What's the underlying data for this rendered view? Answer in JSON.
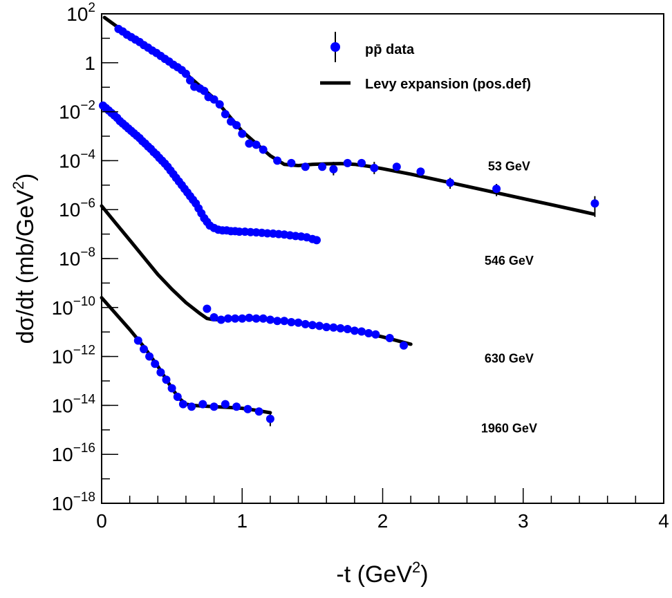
{
  "chart_data": {
    "type": "scatter",
    "xlabel": "-t (GeV",
    "xlabel_sup": "2",
    "xlabel_end": ")",
    "ylabel": "dσ/dt (mb/GeV",
    "ylabel_sup": "2",
    "ylabel_end": ")",
    "xlim": [
      0,
      4
    ],
    "ylim_log10": [
      -18,
      2
    ],
    "y_scale": "log",
    "grid": false,
    "legend_position": "top-right",
    "x_ticks": [
      {
        "value": 0,
        "label": "0"
      },
      {
        "value": 1,
        "label": "1"
      },
      {
        "value": 2,
        "label": "2"
      },
      {
        "value": 3,
        "label": "3"
      },
      {
        "value": 4,
        "label": "4"
      }
    ],
    "y_ticks": [
      {
        "exp": 2,
        "base": "10",
        "sup": "2"
      },
      {
        "exp": 0,
        "base": "1",
        "sup": ""
      },
      {
        "exp": -2,
        "base": "10",
        "sup": "−2"
      },
      {
        "exp": -4,
        "base": "10",
        "sup": "−4"
      },
      {
        "exp": -6,
        "base": "10",
        "sup": "−6"
      },
      {
        "exp": -8,
        "base": "10",
        "sup": "−8"
      },
      {
        "exp": -10,
        "base": "10",
        "sup": "−10"
      },
      {
        "exp": -12,
        "base": "10",
        "sup": "−12"
      },
      {
        "exp": -14,
        "base": "10",
        "sup": "−14"
      },
      {
        "exp": -16,
        "base": "10",
        "sup": "−16"
      },
      {
        "exp": -18,
        "base": "10",
        "sup": "−18"
      }
    ],
    "legend": {
      "data_label": "pp̄ data",
      "fit_label": "Levy expansion (pos.def)"
    },
    "annotations": [
      {
        "text": "53 GeV",
        "x": 2.9,
        "y_log10": -4.4
      },
      {
        "text": "546 GeV",
        "x": 2.9,
        "y_log10": -8.25
      },
      {
        "text": "630 GeV",
        "x": 2.9,
        "y_log10": -12.25
      },
      {
        "text": "1960 GeV",
        "x": 2.9,
        "y_log10": -15.1
      }
    ],
    "colors": {
      "data": "#0000ff",
      "fit": "#000000"
    },
    "series": [
      {
        "energy": "53 GeV",
        "data": [
          [
            0.12,
            1.38
          ],
          [
            0.15,
            1.28
          ],
          [
            0.18,
            1.15
          ],
          [
            0.21,
            1.05
          ],
          [
            0.24,
            0.95
          ],
          [
            0.27,
            0.85
          ],
          [
            0.3,
            0.72
          ],
          [
            0.33,
            0.62
          ],
          [
            0.36,
            0.5
          ],
          [
            0.39,
            0.4
          ],
          [
            0.42,
            0.28
          ],
          [
            0.45,
            0.16
          ],
          [
            0.48,
            0.05
          ],
          [
            0.51,
            -0.08
          ],
          [
            0.54,
            -0.18
          ],
          [
            0.57,
            -0.3
          ],
          [
            0.6,
            -0.45
          ],
          [
            0.63,
            -0.72
          ],
          [
            0.66,
            -0.98
          ],
          [
            0.7,
            -1.05
          ],
          [
            0.73,
            -1.15
          ],
          [
            0.76,
            -1.4
          ],
          [
            0.8,
            -1.5
          ],
          [
            0.84,
            -1.7
          ],
          [
            0.88,
            -2.1
          ],
          [
            0.92,
            -2.4
          ],
          [
            0.96,
            -2.55
          ],
          [
            1.0,
            -2.9
          ],
          [
            1.05,
            -3.3
          ],
          [
            1.1,
            -3.35
          ],
          [
            1.15,
            -3.55
          ],
          [
            1.25,
            -4.0
          ],
          [
            1.35,
            -4.1
          ],
          [
            1.45,
            -4.25
          ],
          [
            1.57,
            -4.25
          ],
          [
            1.65,
            -4.35
          ],
          [
            1.75,
            -4.1
          ],
          [
            1.85,
            -4.1
          ],
          [
            1.94,
            -4.3
          ],
          [
            2.1,
            -4.25
          ],
          [
            2.27,
            -4.45
          ],
          [
            2.48,
            -4.9
          ],
          [
            2.81,
            -5.15
          ],
          [
            3.51,
            -5.75
          ]
        ],
        "errors": [
          [
            1.65,
            -4.6,
            -4.05
          ],
          [
            1.94,
            -4.55,
            -4.05
          ],
          [
            2.48,
            -5.15,
            -4.7
          ],
          [
            2.81,
            -5.45,
            -4.95
          ],
          [
            3.51,
            -6.3,
            -5.45
          ]
        ],
        "fit": [
          [
            0.02,
            1.85
          ],
          [
            0.2,
            1.1
          ],
          [
            0.4,
            0.3
          ],
          [
            0.6,
            -0.45
          ],
          [
            0.8,
            -1.45
          ],
          [
            1.0,
            -2.8
          ],
          [
            1.1,
            -3.3
          ],
          [
            1.2,
            -3.8
          ],
          [
            1.3,
            -4.15
          ],
          [
            1.4,
            -4.2
          ],
          [
            1.5,
            -4.15
          ],
          [
            1.6,
            -4.13
          ],
          [
            1.7,
            -4.12
          ],
          [
            1.8,
            -4.15
          ],
          [
            1.9,
            -4.23
          ],
          [
            2.0,
            -4.33
          ],
          [
            2.2,
            -4.55
          ],
          [
            2.4,
            -4.8
          ],
          [
            2.6,
            -5.05
          ],
          [
            2.8,
            -5.3
          ],
          [
            3.0,
            -5.55
          ],
          [
            3.2,
            -5.8
          ],
          [
            3.4,
            -6.05
          ],
          [
            3.5,
            -6.18
          ]
        ]
      },
      {
        "energy": "546 GeV",
        "data": [
          [
            0.01,
            -1.75
          ],
          [
            0.03,
            -1.85
          ],
          [
            0.05,
            -1.95
          ],
          [
            0.07,
            -2.05
          ],
          [
            0.09,
            -2.15
          ],
          [
            0.11,
            -2.25
          ],
          [
            0.13,
            -2.38
          ],
          [
            0.15,
            -2.48
          ],
          [
            0.17,
            -2.58
          ],
          [
            0.19,
            -2.68
          ],
          [
            0.21,
            -2.78
          ],
          [
            0.23,
            -2.88
          ],
          [
            0.25,
            -2.98
          ],
          [
            0.27,
            -3.08
          ],
          [
            0.29,
            -3.2
          ],
          [
            0.31,
            -3.3
          ],
          [
            0.33,
            -3.42
          ],
          [
            0.35,
            -3.52
          ],
          [
            0.37,
            -3.65
          ],
          [
            0.39,
            -3.75
          ],
          [
            0.41,
            -3.88
          ],
          [
            0.43,
            -4.0
          ],
          [
            0.45,
            -4.12
          ],
          [
            0.47,
            -4.25
          ],
          [
            0.49,
            -4.4
          ],
          [
            0.51,
            -4.55
          ],
          [
            0.53,
            -4.7
          ],
          [
            0.55,
            -4.85
          ],
          [
            0.57,
            -5.0
          ],
          [
            0.59,
            -5.15
          ],
          [
            0.61,
            -5.3
          ],
          [
            0.63,
            -5.45
          ],
          [
            0.65,
            -5.6
          ],
          [
            0.67,
            -5.75
          ],
          [
            0.69,
            -5.95
          ],
          [
            0.71,
            -6.15
          ],
          [
            0.73,
            -6.35
          ],
          [
            0.75,
            -6.5
          ],
          [
            0.77,
            -6.65
          ],
          [
            0.8,
            -6.75
          ],
          [
            0.83,
            -6.82
          ],
          [
            0.86,
            -6.85
          ],
          [
            0.89,
            -6.85
          ],
          [
            0.92,
            -6.88
          ],
          [
            0.95,
            -6.88
          ],
          [
            0.98,
            -6.9
          ],
          [
            1.02,
            -6.9
          ],
          [
            1.06,
            -6.92
          ],
          [
            1.1,
            -6.93
          ],
          [
            1.14,
            -6.95
          ],
          [
            1.18,
            -6.97
          ],
          [
            1.22,
            -6.98
          ],
          [
            1.26,
            -7.0
          ],
          [
            1.3,
            -7.02
          ],
          [
            1.34,
            -7.05
          ],
          [
            1.38,
            -7.08
          ],
          [
            1.42,
            -7.1
          ],
          [
            1.46,
            -7.13
          ],
          [
            1.5,
            -7.2
          ],
          [
            1.53,
            -7.25
          ]
        ],
        "errors": [],
        "fit": [
          [
            0.0,
            -1.75
          ],
          [
            0.1,
            -2.2
          ],
          [
            0.2,
            -2.7
          ],
          [
            0.3,
            -3.25
          ],
          [
            0.4,
            -3.85
          ],
          [
            0.5,
            -4.45
          ],
          [
            0.6,
            -5.2
          ],
          [
            0.7,
            -6.05
          ],
          [
            0.75,
            -6.5
          ],
          [
            0.8,
            -6.8
          ],
          [
            0.9,
            -6.88
          ],
          [
            1.0,
            -6.92
          ],
          [
            1.1,
            -6.95
          ],
          [
            1.2,
            -6.98
          ],
          [
            1.3,
            -7.02
          ],
          [
            1.4,
            -7.1
          ],
          [
            1.5,
            -7.22
          ]
        ]
      },
      {
        "energy": "630 GeV",
        "data": [
          [
            0.75,
            -10.05
          ],
          [
            0.8,
            -10.4
          ],
          [
            0.85,
            -10.5
          ],
          [
            0.9,
            -10.45
          ],
          [
            0.95,
            -10.45
          ],
          [
            1.0,
            -10.45
          ],
          [
            1.05,
            -10.42
          ],
          [
            1.1,
            -10.45
          ],
          [
            1.15,
            -10.45
          ],
          [
            1.2,
            -10.5
          ],
          [
            1.25,
            -10.55
          ],
          [
            1.3,
            -10.55
          ],
          [
            1.35,
            -10.6
          ],
          [
            1.4,
            -10.62
          ],
          [
            1.45,
            -10.68
          ],
          [
            1.5,
            -10.72
          ],
          [
            1.55,
            -10.75
          ],
          [
            1.6,
            -10.8
          ],
          [
            1.65,
            -10.82
          ],
          [
            1.7,
            -10.85
          ],
          [
            1.75,
            -10.88
          ],
          [
            1.8,
            -10.95
          ],
          [
            1.85,
            -10.98
          ],
          [
            1.9,
            -11.05
          ],
          [
            1.95,
            -11.1
          ],
          [
            2.05,
            -11.25
          ],
          [
            2.15,
            -11.55
          ]
        ],
        "errors": [],
        "fit": [
          [
            0.0,
            -5.85
          ],
          [
            0.1,
            -6.55
          ],
          [
            0.2,
            -7.25
          ],
          [
            0.3,
            -7.95
          ],
          [
            0.4,
            -8.65
          ],
          [
            0.5,
            -9.25
          ],
          [
            0.6,
            -9.8
          ],
          [
            0.7,
            -10.25
          ],
          [
            0.75,
            -10.45
          ],
          [
            0.8,
            -10.5
          ],
          [
            0.9,
            -10.47
          ],
          [
            1.0,
            -10.45
          ],
          [
            1.2,
            -10.5
          ],
          [
            1.4,
            -10.62
          ],
          [
            1.6,
            -10.78
          ],
          [
            1.8,
            -10.95
          ],
          [
            2.0,
            -11.2
          ],
          [
            2.2,
            -11.5
          ]
        ]
      },
      {
        "energy": "1960 GeV",
        "data": [
          [
            0.26,
            -11.35
          ],
          [
            0.3,
            -11.7
          ],
          [
            0.34,
            -12.0
          ],
          [
            0.38,
            -12.3
          ],
          [
            0.42,
            -12.65
          ],
          [
            0.46,
            -12.95
          ],
          [
            0.5,
            -13.3
          ],
          [
            0.54,
            -13.65
          ],
          [
            0.58,
            -13.95
          ],
          [
            0.64,
            -14.05
          ],
          [
            0.72,
            -13.95
          ],
          [
            0.8,
            -14.05
          ],
          [
            0.88,
            -13.95
          ],
          [
            0.96,
            -14.05
          ],
          [
            1.04,
            -14.15
          ],
          [
            1.12,
            -14.25
          ],
          [
            1.2,
            -14.55
          ]
        ],
        "errors": [
          [
            1.2,
            -14.85,
            -14.35
          ]
        ],
        "fit": [
          [
            0.0,
            -9.6
          ],
          [
            0.1,
            -10.25
          ],
          [
            0.2,
            -10.9
          ],
          [
            0.3,
            -11.6
          ],
          [
            0.4,
            -12.4
          ],
          [
            0.5,
            -13.3
          ],
          [
            0.55,
            -13.7
          ],
          [
            0.6,
            -13.95
          ],
          [
            0.65,
            -14.0
          ],
          [
            0.7,
            -14.02
          ],
          [
            0.8,
            -14.05
          ],
          [
            0.9,
            -14.08
          ],
          [
            1.0,
            -14.12
          ],
          [
            1.1,
            -14.2
          ],
          [
            1.2,
            -14.3
          ]
        ]
      }
    ]
  }
}
